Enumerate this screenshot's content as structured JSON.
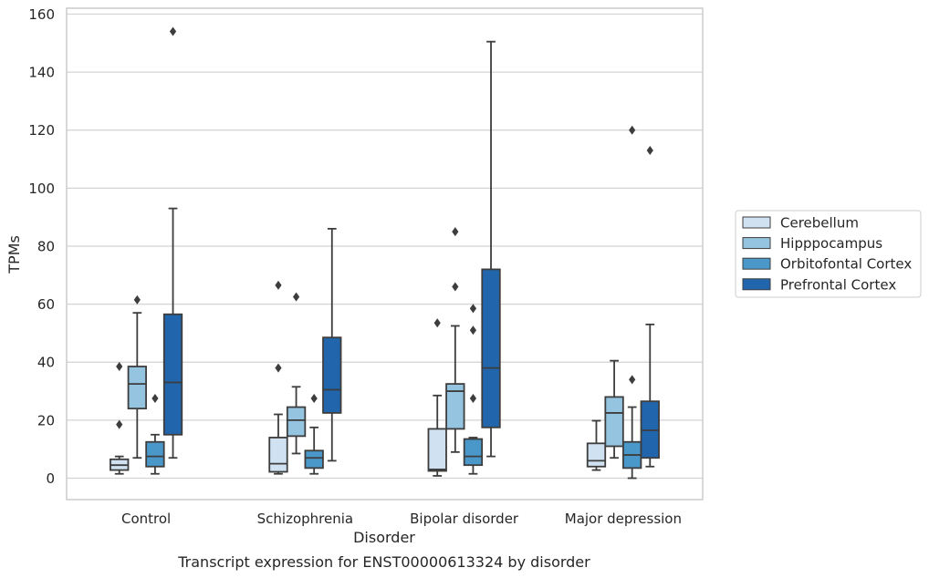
{
  "chart_data": {
    "type": "box",
    "title": "",
    "caption": "Transcript expression for ENST00000613324 by disorder",
    "xlabel": "Disorder",
    "ylabel": "TPMs",
    "ylim": [
      -7.5,
      162
    ],
    "yticks": [
      0,
      20,
      40,
      60,
      80,
      100,
      120,
      140,
      160
    ],
    "grid": "horizontal",
    "legend_position": "right",
    "categories": [
      "Control",
      "Schizophrenia",
      "Bipolar disorder",
      "Major depression"
    ],
    "series": [
      {
        "name": "Cerebellum",
        "color": "#d0e1f2",
        "boxes": [
          {
            "q1": 2.8,
            "median": 4.5,
            "q3": 6.5,
            "whisker_low": 1.5,
            "whisker_high": 7.5,
            "outliers": [
              18.5,
              38.5
            ]
          },
          {
            "q1": 2.2,
            "median": 5.0,
            "q3": 14.0,
            "whisker_low": 1.5,
            "whisker_high": 22.0,
            "outliers": [
              38.0,
              66.5
            ]
          },
          {
            "q1": 2.5,
            "median": 3.0,
            "q3": 17.0,
            "whisker_low": 0.8,
            "whisker_high": 28.5,
            "outliers": [
              53.5
            ]
          },
          {
            "q1": 4.0,
            "median": 6.0,
            "q3": 12.0,
            "whisker_low": 2.8,
            "whisker_high": 19.8,
            "outliers": []
          }
        ]
      },
      {
        "name": "Hipppocampus",
        "color": "#94c4df",
        "boxes": [
          {
            "q1": 24.0,
            "median": 32.5,
            "q3": 38.5,
            "whisker_low": 7.0,
            "whisker_high": 57.0,
            "outliers": [
              61.5
            ]
          },
          {
            "q1": 14.5,
            "median": 20.0,
            "q3": 24.5,
            "whisker_low": 8.5,
            "whisker_high": 31.5,
            "outliers": [
              62.5
            ]
          },
          {
            "q1": 17.0,
            "median": 30.0,
            "q3": 32.5,
            "whisker_low": 9.0,
            "whisker_high": 52.5,
            "outliers": [
              66.0,
              85.0
            ]
          },
          {
            "q1": 11.0,
            "median": 22.5,
            "q3": 28.0,
            "whisker_low": 7.0,
            "whisker_high": 40.5,
            "outliers": []
          }
        ]
      },
      {
        "name": "Orbitofontal Cortex",
        "color": "#4a98c9",
        "boxes": [
          {
            "q1": 4.0,
            "median": 7.5,
            "q3": 12.5,
            "whisker_low": 1.5,
            "whisker_high": 15.0,
            "outliers": [
              27.5
            ]
          },
          {
            "q1": 3.5,
            "median": 7.0,
            "q3": 9.5,
            "whisker_low": 1.5,
            "whisker_high": 17.5,
            "outliers": [
              27.5
            ]
          },
          {
            "q1": 4.5,
            "median": 7.5,
            "q3": 13.5,
            "whisker_low": 1.5,
            "whisker_high": 14.0,
            "outliers": [
              27.5,
              51.0,
              58.5
            ]
          },
          {
            "q1": 3.5,
            "median": 8.0,
            "q3": 12.5,
            "whisker_low": 0.0,
            "whisker_high": 24.5,
            "outliers": [
              34.0,
              120.0
            ]
          }
        ]
      },
      {
        "name": "Prefrontal Cortex",
        "color": "#2166ac",
        "boxes": [
          {
            "q1": 15.0,
            "median": 33.0,
            "q3": 56.5,
            "whisker_low": 7.0,
            "whisker_high": 93.0,
            "outliers": [
              154.0
            ]
          },
          {
            "q1": 22.5,
            "median": 30.5,
            "q3": 48.5,
            "whisker_low": 6.0,
            "whisker_high": 86.0,
            "outliers": []
          },
          {
            "q1": 17.5,
            "median": 38.0,
            "q3": 72.0,
            "whisker_low": 7.5,
            "whisker_high": 150.5,
            "outliers": []
          },
          {
            "q1": 7.0,
            "median": 16.5,
            "q3": 26.5,
            "whisker_low": 4.0,
            "whisker_high": 53.0,
            "outliers": [
              113.0
            ]
          }
        ]
      }
    ]
  }
}
